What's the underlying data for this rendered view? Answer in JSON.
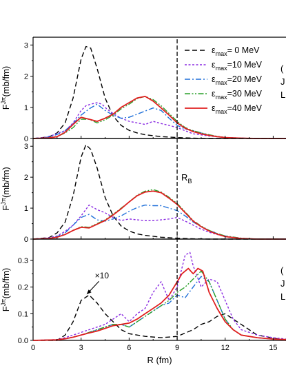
{
  "chart_data": {
    "type": "line",
    "xlabel": "R (fm)",
    "xlim": [
      0,
      15.8
    ],
    "x_ticks": [
      "0",
      "3",
      "6",
      "9",
      "12",
      "15"
    ],
    "ylabel": "F",
    "ylabel_sup": "Jπ",
    "ylabel_unit": "(mb/fm)",
    "legend": {
      "position": "top-right",
      "prefix": "ε",
      "sub": "max",
      "entries": [
        "= 0 MeV",
        "=10 MeV",
        "=20 MeV",
        "=30 MeV",
        "=40 MeV"
      ]
    },
    "vline": {
      "x": 9,
      "label": "R",
      "label_sub": "B"
    },
    "panel_side_labels": {
      "a": [
        "(",
        "J",
        "L"
      ],
      "c": [
        "(",
        "J",
        "L"
      ]
    },
    "annotation": {
      "text": "×10",
      "panel": 2,
      "target": [
        3.3,
        0.17
      ]
    },
    "styles": [
      {
        "color": "#000000",
        "dash": "7,4"
      },
      {
        "color": "#8a2be2",
        "dash": "3,2.5"
      },
      {
        "color": "#1e6fd9",
        "dash": "8,3,2,3"
      },
      {
        "color": "#2aa02a",
        "dash": "8,2.5,2,2.5,2,2.5"
      },
      {
        "color": "#e02020",
        "dash": ""
      }
    ],
    "panels": [
      {
        "ylim": [
          0,
          3.25
        ],
        "yticks": [
          "0",
          "1",
          "2",
          "3"
        ],
        "series": [
          {
            "x": [
              0,
              1,
              1.5,
              2,
              2.5,
              3,
              3.3,
              3.6,
              4,
              4.5,
              5,
              5.5,
              6,
              6.5,
              7,
              8,
              9,
              10,
              11,
              12,
              13,
              15.8
            ],
            "y": [
              0,
              0.05,
              0.18,
              0.5,
              1.3,
              2.55,
              2.95,
              2.9,
              2.25,
              1.3,
              0.72,
              0.42,
              0.26,
              0.18,
              0.12,
              0.06,
              0.03,
              0.01,
              0,
              0,
              0,
              0
            ]
          },
          {
            "x": [
              0,
              0.8,
              1.2,
              1.6,
              2,
              2.5,
              3,
              3.3,
              3.6,
              4,
              4.3,
              4.6,
              5,
              5.5,
              6,
              6.5,
              7,
              7.5,
              8,
              8.5,
              9,
              9.5,
              10,
              11,
              12,
              13,
              14,
              15.8
            ],
            "y": [
              0,
              0.04,
              0.1,
              0.18,
              0.25,
              0.5,
              0.9,
              1.05,
              1.1,
              1.15,
              1.1,
              0.95,
              0.8,
              0.65,
              0.55,
              0.5,
              0.45,
              0.55,
              0.48,
              0.42,
              0.35,
              0.25,
              0.15,
              0.08,
              0.03,
              0.01,
              0,
              0
            ]
          },
          {
            "x": [
              0,
              0.8,
              1.2,
              1.6,
              2,
              2.5,
              3,
              3.5,
              4,
              4.5,
              5,
              5.5,
              6,
              6.5,
              7,
              7.5,
              8,
              8.5,
              9,
              9.5,
              10,
              10.5,
              11,
              12,
              13,
              14,
              15.8
            ],
            "y": [
              0,
              0.03,
              0.08,
              0.15,
              0.25,
              0.48,
              0.75,
              0.95,
              1.1,
              0.9,
              0.75,
              0.65,
              0.68,
              0.78,
              0.88,
              0.98,
              0.9,
              0.65,
              0.42,
              0.3,
              0.25,
              0.18,
              0.1,
              0.03,
              0.01,
              0,
              0
            ]
          },
          {
            "x": [
              0,
              1,
              1.5,
              2,
              2.5,
              3,
              3.5,
              4,
              4.5,
              5,
              5.5,
              6,
              6.5,
              7,
              7.5,
              8,
              8.5,
              9,
              9.5,
              10,
              10.5,
              11,
              11.5,
              12,
              13,
              14,
              15.8
            ],
            "y": [
              0,
              0.02,
              0.06,
              0.18,
              0.35,
              0.62,
              0.62,
              0.5,
              0.6,
              0.75,
              0.95,
              1.1,
              1.28,
              1.35,
              1.25,
              1.05,
              0.8,
              0.55,
              0.35,
              0.25,
              0.18,
              0.12,
              0.07,
              0.03,
              0.01,
              0,
              0
            ]
          },
          {
            "x": [
              0,
              1,
              1.5,
              2,
              2.5,
              3,
              3.5,
              4,
              4.5,
              5,
              5.5,
              6,
              6.5,
              7,
              7.5,
              8,
              8.5,
              9,
              9.5,
              10,
              10.5,
              11,
              11.5,
              12,
              13,
              14,
              15.8
            ],
            "y": [
              0,
              0.02,
              0.06,
              0.2,
              0.45,
              0.68,
              0.62,
              0.55,
              0.65,
              0.78,
              1.0,
              1.15,
              1.3,
              1.35,
              1.2,
              0.98,
              0.75,
              0.5,
              0.33,
              0.22,
              0.15,
              0.1,
              0.06,
              0.03,
              0.01,
              0,
              0
            ]
          }
        ]
      },
      {
        "ylim": [
          0,
          3.25
        ],
        "yticks": [
          "0",
          "1",
          "2",
          "3"
        ],
        "series": [
          {
            "x": [
              0,
              1,
              1.5,
              2,
              2.5,
              3,
              3.3,
              3.6,
              4,
              4.5,
              5,
              5.5,
              6,
              6.5,
              7,
              8,
              9,
              10,
              11,
              12,
              13,
              15.8
            ],
            "y": [
              0,
              0.05,
              0.2,
              0.55,
              1.4,
              2.65,
              3.05,
              2.9,
              2.3,
              1.35,
              0.75,
              0.42,
              0.26,
              0.17,
              0.12,
              0.06,
              0.03,
              0.01,
              0,
              0,
              0,
              0
            ]
          },
          {
            "x": [
              0,
              1,
              1.5,
              2,
              2.5,
              3,
              3.5,
              4,
              4.5,
              5,
              5.5,
              6,
              6.5,
              7,
              7.5,
              8,
              8.5,
              9,
              9.5,
              10,
              10.5,
              11,
              11.5,
              12,
              13,
              14,
              15.8
            ],
            "y": [
              0,
              0.04,
              0.1,
              0.25,
              0.45,
              0.75,
              1.1,
              0.95,
              0.85,
              0.7,
              0.6,
              0.65,
              0.62,
              0.6,
              0.6,
              0.62,
              0.65,
              0.7,
              0.58,
              0.45,
              0.32,
              0.22,
              0.15,
              0.08,
              0.02,
              0,
              0
            ]
          },
          {
            "x": [
              0,
              1,
              1.5,
              2,
              2.5,
              3,
              3.5,
              4,
              4.5,
              5,
              5.5,
              6,
              6.5,
              7,
              7.5,
              8,
              8.5,
              9,
              9.5,
              10,
              10.5,
              11,
              11.5,
              12,
              13,
              14,
              15.8
            ],
            "y": [
              0,
              0.03,
              0.08,
              0.2,
              0.45,
              0.7,
              0.8,
              0.62,
              0.58,
              0.65,
              0.75,
              0.9,
              1.02,
              1.1,
              1.08,
              1.08,
              1.0,
              0.92,
              0.75,
              0.55,
              0.4,
              0.28,
              0.18,
              0.1,
              0.03,
              0,
              0
            ]
          },
          {
            "x": [
              0,
              1,
              1.5,
              2,
              2.5,
              3,
              3.5,
              4,
              4.5,
              5,
              5.5,
              6,
              6.5,
              7,
              7.5,
              8,
              8.5,
              9,
              9.5,
              10,
              10.5,
              11,
              11.5,
              12,
              13,
              14,
              15.8
            ],
            "y": [
              0,
              0.02,
              0.06,
              0.15,
              0.28,
              0.4,
              0.38,
              0.5,
              0.62,
              0.8,
              1.0,
              1.2,
              1.42,
              1.55,
              1.6,
              1.52,
              1.35,
              1.15,
              0.88,
              0.6,
              0.42,
              0.28,
              0.18,
              0.1,
              0.03,
              0,
              0
            ]
          },
          {
            "x": [
              0,
              1,
              1.5,
              2,
              2.5,
              3,
              3.5,
              4,
              4.5,
              5,
              5.5,
              6,
              6.5,
              7,
              7.5,
              8,
              8.5,
              9,
              9.5,
              10,
              10.5,
              11,
              11.5,
              12,
              13,
              14,
              15.8
            ],
            "y": [
              0,
              0.02,
              0.06,
              0.15,
              0.28,
              0.38,
              0.36,
              0.48,
              0.6,
              0.78,
              0.98,
              1.2,
              1.4,
              1.52,
              1.55,
              1.5,
              1.32,
              1.12,
              0.85,
              0.58,
              0.4,
              0.26,
              0.16,
              0.08,
              0.02,
              0,
              0
            ]
          }
        ]
      },
      {
        "ylim": [
          0,
          0.38
        ],
        "yticks": [
          "0.0",
          "0.1",
          "0.2",
          "0.3"
        ],
        "series": [
          {
            "x": [
              0,
              1.5,
              2,
              2.5,
              3,
              3.5,
              4,
              4.5,
              5,
              5.5,
              6,
              7,
              8,
              9,
              10,
              10.5,
              11,
              11.5,
              12,
              12.5,
              13,
              13.5,
              14,
              15.8
            ],
            "y": [
              0,
              0,
              0.02,
              0.07,
              0.15,
              0.17,
              0.14,
              0.1,
              0.07,
              0.04,
              0.025,
              0.015,
              0.01,
              0.015,
              0.04,
              0.06,
              0.07,
              0.09,
              0.1,
              0.08,
              0.06,
              0.04,
              0.02,
              0
            ]
          },
          {
            "x": [
              0,
              1.5,
              2,
              2.5,
              3,
              3.5,
              4,
              4.5,
              5,
              5.5,
              6,
              6.5,
              7,
              7.5,
              8,
              8.5,
              9,
              9.5,
              9.8,
              10,
              10.5,
              11,
              11.5,
              12,
              12.5,
              13,
              14,
              15,
              15.8
            ],
            "y": [
              0,
              0.003,
              0.01,
              0.02,
              0.03,
              0.04,
              0.05,
              0.06,
              0.08,
              0.1,
              0.07,
              0.1,
              0.12,
              0.18,
              0.22,
              0.15,
              0.2,
              0.32,
              0.33,
              0.28,
              0.2,
              0.23,
              0.22,
              0.15,
              0.08,
              0.04,
              0.02,
              0.01,
              0.005
            ]
          },
          {
            "x": [
              0,
              1.5,
              2,
              2.5,
              3,
              3.5,
              4,
              4.5,
              5,
              5.5,
              6,
              6.5,
              7,
              7.5,
              8,
              8.5,
              9,
              9.5,
              10,
              10.5,
              11,
              11.5,
              12,
              12.5,
              13,
              14,
              15,
              15.8
            ],
            "y": [
              0,
              0.002,
              0.006,
              0.012,
              0.02,
              0.03,
              0.04,
              0.05,
              0.06,
              0.06,
              0.05,
              0.07,
              0.09,
              0.11,
              0.13,
              0.14,
              0.17,
              0.16,
              0.2,
              0.24,
              0.22,
              0.15,
              0.08,
              0.04,
              0.02,
              0.01,
              0.005,
              0.003
            ]
          },
          {
            "x": [
              0,
              1.5,
              2,
              2.5,
              3,
              3.5,
              4,
              4.5,
              5,
              5.5,
              6,
              6.5,
              7,
              7.5,
              8,
              8.5,
              9,
              9.5,
              10,
              10.5,
              11,
              11.5,
              12,
              12.5,
              13,
              14,
              15,
              15.8
            ],
            "y": [
              0,
              0.002,
              0.006,
              0.012,
              0.02,
              0.03,
              0.04,
              0.05,
              0.06,
              0.06,
              0.05,
              0.07,
              0.09,
              0.11,
              0.13,
              0.15,
              0.18,
              0.2,
              0.23,
              0.26,
              0.22,
              0.15,
              0.08,
              0.04,
              0.02,
              0.01,
              0.005,
              0.003
            ]
          },
          {
            "x": [
              0,
              1.5,
              2,
              2.5,
              3,
              3.5,
              4,
              4.5,
              5,
              5.5,
              6,
              6.5,
              7,
              7.5,
              8,
              8.5,
              9,
              9.3,
              9.7,
              10,
              10.3,
              10.6,
              11,
              11.5,
              12,
              12.5,
              13,
              14,
              15,
              15.8
            ],
            "y": [
              0,
              0.002,
              0.006,
              0.012,
              0.02,
              0.028,
              0.035,
              0.045,
              0.055,
              0.06,
              0.065,
              0.08,
              0.1,
              0.12,
              0.14,
              0.17,
              0.22,
              0.25,
              0.27,
              0.25,
              0.27,
              0.26,
              0.18,
              0.12,
              0.07,
              0.04,
              0.02,
              0.01,
              0.005,
              0.003
            ]
          }
        ]
      }
    ]
  }
}
